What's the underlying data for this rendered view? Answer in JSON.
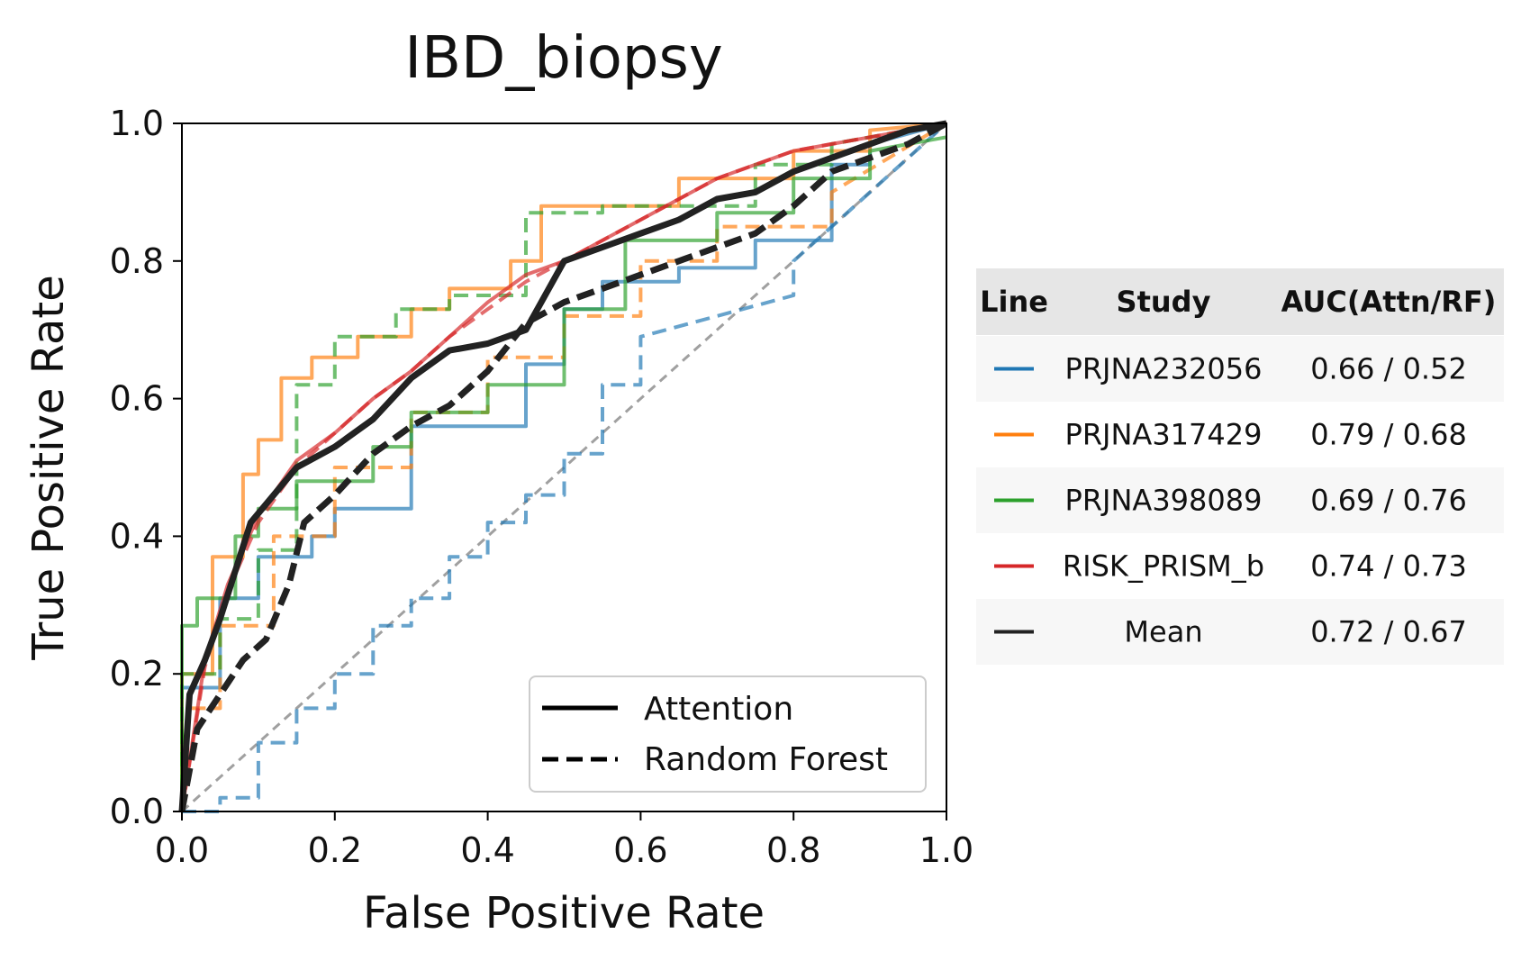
{
  "chart_data": {
    "type": "line",
    "title": "IBD_biopsy",
    "xlabel": "False Positive Rate",
    "ylabel": "True Positive Rate",
    "xlim": [
      0,
      1
    ],
    "ylim": [
      0,
      1
    ],
    "x_ticks": [
      "0.0",
      "0.2",
      "0.4",
      "0.6",
      "0.8",
      "1.0"
    ],
    "y_ticks": [
      "0.0",
      "0.2",
      "0.4",
      "0.6",
      "0.8",
      "1.0"
    ],
    "grid": false,
    "legend": {
      "placement": "lower-right",
      "entries": [
        {
          "label": "Attention",
          "style": "solid"
        },
        {
          "label": "Random Forest",
          "style": "dashed"
        }
      ]
    },
    "reference_line": {
      "x": [
        0,
        1
      ],
      "y": [
        0,
        1
      ],
      "style": "dashed",
      "color": "#a0a0a0"
    },
    "series": [
      {
        "name": "PRJNA232056",
        "color": "#1f77b4",
        "model": "Attention",
        "style": "solid",
        "x": [
          0,
          0,
          0.05,
          0.05,
          0.1,
          0.1,
          0.17,
          0.17,
          0.2,
          0.2,
          0.3,
          0.3,
          0.45,
          0.45,
          0.5,
          0.5,
          0.55,
          0.55,
          0.65,
          0.65,
          0.75,
          0.75,
          0.85,
          0.85,
          0.9,
          0.9,
          1.0
        ],
        "y": [
          0,
          0.18,
          0.18,
          0.31,
          0.31,
          0.37,
          0.37,
          0.4,
          0.4,
          0.44,
          0.44,
          0.56,
          0.56,
          0.65,
          0.65,
          0.73,
          0.73,
          0.77,
          0.77,
          0.79,
          0.79,
          0.83,
          0.83,
          0.94,
          0.94,
          0.97,
          1.0
        ]
      },
      {
        "name": "PRJNA232056",
        "color": "#1f77b4",
        "model": "Random Forest",
        "style": "dashed",
        "x": [
          0,
          0.05,
          0.05,
          0.1,
          0.1,
          0.15,
          0.15,
          0.2,
          0.2,
          0.25,
          0.25,
          0.3,
          0.3,
          0.35,
          0.35,
          0.4,
          0.4,
          0.45,
          0.45,
          0.5,
          0.5,
          0.55,
          0.55,
          0.6,
          0.6,
          0.8,
          0.8,
          1.0
        ],
        "y": [
          0,
          0,
          0.02,
          0.02,
          0.1,
          0.1,
          0.15,
          0.15,
          0.2,
          0.2,
          0.27,
          0.27,
          0.31,
          0.31,
          0.37,
          0.37,
          0.42,
          0.42,
          0.46,
          0.46,
          0.52,
          0.52,
          0.62,
          0.62,
          0.69,
          0.75,
          0.8,
          1.0
        ]
      },
      {
        "name": "PRJNA317429",
        "color": "#ff7f0e",
        "model": "Attention",
        "style": "solid",
        "x": [
          0,
          0,
          0.04,
          0.04,
          0.08,
          0.08,
          0.1,
          0.1,
          0.13,
          0.13,
          0.17,
          0.17,
          0.23,
          0.23,
          0.3,
          0.3,
          0.35,
          0.35,
          0.43,
          0.43,
          0.47,
          0.47,
          0.55,
          0.55,
          0.65,
          0.65,
          0.8,
          0.8,
          0.9,
          0.9,
          1.0
        ],
        "y": [
          0,
          0.2,
          0.2,
          0.37,
          0.37,
          0.49,
          0.49,
          0.54,
          0.54,
          0.63,
          0.63,
          0.66,
          0.66,
          0.69,
          0.69,
          0.73,
          0.73,
          0.76,
          0.76,
          0.8,
          0.8,
          0.88,
          0.88,
          0.88,
          0.88,
          0.92,
          0.92,
          0.96,
          0.96,
          0.99,
          1.0
        ]
      },
      {
        "name": "PRJNA317429",
        "color": "#ff7f0e",
        "model": "Random Forest",
        "style": "dashed",
        "x": [
          0,
          0,
          0.05,
          0.05,
          0.12,
          0.12,
          0.2,
          0.2,
          0.3,
          0.3,
          0.4,
          0.4,
          0.5,
          0.5,
          0.6,
          0.6,
          0.7,
          0.7,
          0.85,
          0.85,
          1.0
        ],
        "y": [
          0,
          0.15,
          0.15,
          0.27,
          0.27,
          0.4,
          0.4,
          0.5,
          0.5,
          0.58,
          0.58,
          0.66,
          0.66,
          0.72,
          0.72,
          0.8,
          0.8,
          0.85,
          0.85,
          0.9,
          1.0
        ]
      },
      {
        "name": "PRJNA398089",
        "color": "#2ca02c",
        "model": "Attention",
        "style": "solid",
        "x": [
          0,
          0,
          0.02,
          0.02,
          0.07,
          0.07,
          0.1,
          0.1,
          0.15,
          0.15,
          0.25,
          0.25,
          0.3,
          0.3,
          0.4,
          0.4,
          0.5,
          0.5,
          0.58,
          0.58,
          0.7,
          0.7,
          0.8,
          0.8,
          0.9,
          0.9,
          1.0
        ],
        "y": [
          0,
          0.27,
          0.27,
          0.31,
          0.31,
          0.4,
          0.4,
          0.44,
          0.44,
          0.48,
          0.48,
          0.53,
          0.53,
          0.58,
          0.58,
          0.62,
          0.62,
          0.73,
          0.73,
          0.83,
          0.83,
          0.87,
          0.87,
          0.92,
          0.92,
          0.96,
          0.98
        ]
      },
      {
        "name": "PRJNA398089",
        "color": "#2ca02c",
        "model": "Random Forest",
        "style": "dashed",
        "x": [
          0,
          0,
          0.05,
          0.05,
          0.1,
          0.1,
          0.15,
          0.15,
          0.2,
          0.2,
          0.28,
          0.28,
          0.35,
          0.35,
          0.45,
          0.45,
          0.55,
          0.55,
          0.75,
          0.75,
          0.85,
          0.85,
          1.0
        ],
        "y": [
          0,
          0.2,
          0.2,
          0.28,
          0.28,
          0.38,
          0.38,
          0.62,
          0.62,
          0.69,
          0.69,
          0.73,
          0.73,
          0.75,
          0.75,
          0.87,
          0.87,
          0.88,
          0.88,
          0.94,
          0.94,
          0.97,
          1.0
        ]
      },
      {
        "name": "RISK_PRISM_b",
        "color": "#d62728",
        "model": "Attention",
        "style": "solid",
        "x": [
          0,
          0.03,
          0.06,
          0.1,
          0.15,
          0.2,
          0.25,
          0.3,
          0.35,
          0.4,
          0.45,
          0.5,
          0.55,
          0.6,
          0.65,
          0.7,
          0.75,
          0.8,
          0.85,
          0.9,
          0.95,
          1.0
        ],
        "y": [
          0,
          0.22,
          0.33,
          0.43,
          0.51,
          0.55,
          0.6,
          0.64,
          0.69,
          0.74,
          0.78,
          0.8,
          0.83,
          0.86,
          0.89,
          0.92,
          0.94,
          0.96,
          0.97,
          0.98,
          0.99,
          1.0
        ]
      },
      {
        "name": "RISK_PRISM_b",
        "color": "#d62728",
        "model": "Random Forest",
        "style": "dashed",
        "x": [
          0,
          0.03,
          0.06,
          0.1,
          0.15,
          0.2,
          0.25,
          0.3,
          0.35,
          0.4,
          0.45,
          0.5,
          0.55,
          0.6,
          0.65,
          0.7,
          0.75,
          0.8,
          0.85,
          0.9,
          0.95,
          1.0
        ],
        "y": [
          0,
          0.21,
          0.32,
          0.42,
          0.5,
          0.55,
          0.6,
          0.64,
          0.69,
          0.73,
          0.77,
          0.8,
          0.83,
          0.86,
          0.89,
          0.92,
          0.94,
          0.96,
          0.97,
          0.98,
          0.99,
          1.0
        ]
      },
      {
        "name": "Mean",
        "color": "#222222",
        "model": "Attention",
        "style": "solid",
        "x": [
          0,
          0.01,
          0.03,
          0.05,
          0.07,
          0.09,
          0.12,
          0.15,
          0.2,
          0.25,
          0.3,
          0.35,
          0.4,
          0.45,
          0.5,
          0.55,
          0.6,
          0.65,
          0.7,
          0.75,
          0.8,
          0.85,
          0.9,
          0.95,
          1.0
        ],
        "y": [
          0,
          0.17,
          0.22,
          0.28,
          0.35,
          0.42,
          0.46,
          0.5,
          0.53,
          0.57,
          0.63,
          0.67,
          0.68,
          0.7,
          0.8,
          0.82,
          0.84,
          0.86,
          0.89,
          0.9,
          0.93,
          0.95,
          0.97,
          0.99,
          1.0
        ]
      },
      {
        "name": "Mean",
        "color": "#222222",
        "model": "Random Forest",
        "style": "dashed",
        "x": [
          0,
          0.02,
          0.05,
          0.08,
          0.11,
          0.14,
          0.16,
          0.2,
          0.25,
          0.3,
          0.35,
          0.4,
          0.45,
          0.5,
          0.55,
          0.6,
          0.65,
          0.7,
          0.75,
          0.8,
          0.85,
          0.9,
          0.95,
          1.0
        ],
        "y": [
          0,
          0.12,
          0.17,
          0.22,
          0.25,
          0.33,
          0.42,
          0.46,
          0.52,
          0.56,
          0.59,
          0.64,
          0.71,
          0.74,
          0.76,
          0.78,
          0.8,
          0.82,
          0.84,
          0.88,
          0.93,
          0.95,
          0.97,
          1.0
        ]
      }
    ]
  },
  "summary_table": {
    "headers": [
      "Line",
      "Study",
      "AUC(Attn/RF)"
    ],
    "rows": [
      {
        "color": "#1f77b4",
        "study": "PRJNA232056",
        "auc": "0.66 / 0.52"
      },
      {
        "color": "#ff7f0e",
        "study": "PRJNA317429",
        "auc": "0.79 / 0.68"
      },
      {
        "color": "#2ca02c",
        "study": "PRJNA398089",
        "auc": "0.69 / 0.76"
      },
      {
        "color": "#d62728",
        "study": "RISK_PRISM_b",
        "auc": "0.74 / 0.73"
      },
      {
        "color": "#222222",
        "study": "Mean",
        "auc": "0.72 / 0.67"
      }
    ]
  }
}
